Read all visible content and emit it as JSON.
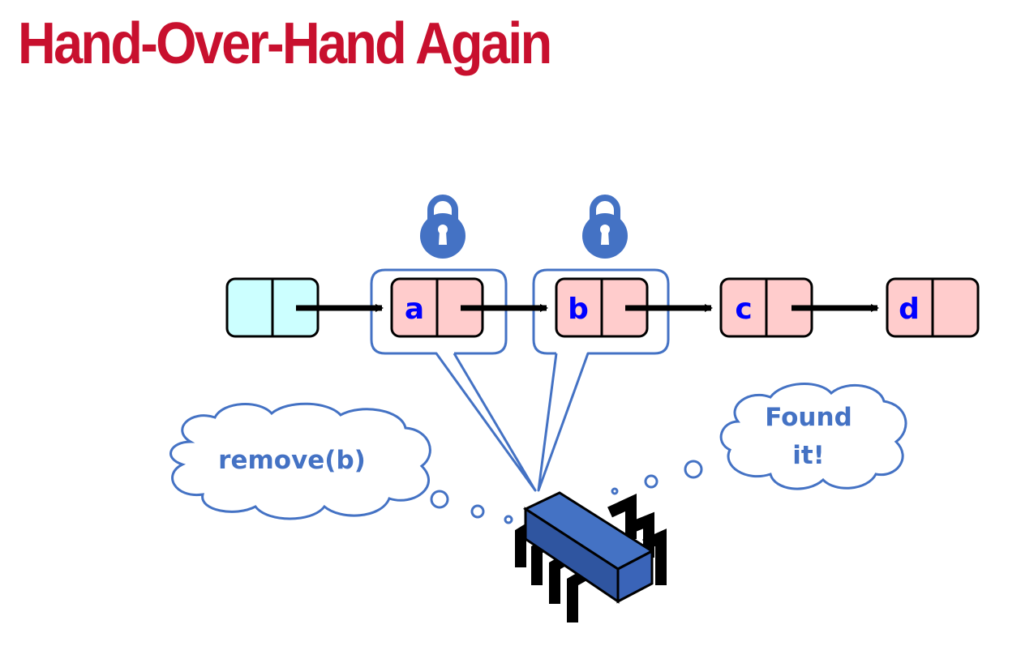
{
  "title": "Hand-Over-Hand Again",
  "colors": {
    "title": "#c8102e",
    "accent_blue": "#4472c4",
    "sentinel_fill": "#ccffff",
    "node_fill": "#ffcccc",
    "label_blue": "#0000ff",
    "arrow": "#000000"
  },
  "list": {
    "nodes": [
      {
        "label": "",
        "kind": "sentinel"
      },
      {
        "label": "a",
        "kind": "node",
        "locked": true
      },
      {
        "label": "b",
        "kind": "node",
        "locked": true
      },
      {
        "label": "c",
        "kind": "node",
        "locked": false
      },
      {
        "label": "d",
        "kind": "node",
        "locked": false
      }
    ]
  },
  "thought_left": {
    "text": "remove(b)"
  },
  "thought_right": {
    "line1": "Found",
    "line2": "it!"
  },
  "icons": {
    "lock": "padlock-icon",
    "thread": "processor-chip-icon"
  }
}
